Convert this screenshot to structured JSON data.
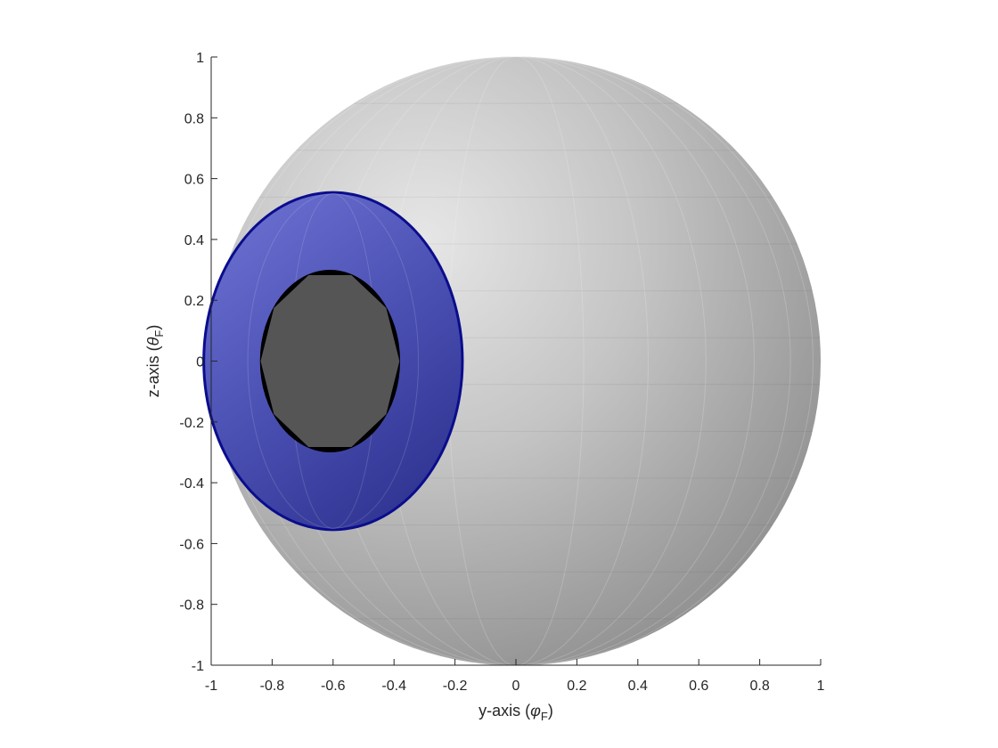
{
  "chart_data": {
    "type": "surface",
    "xlabel": {
      "main": "y-axis (",
      "symbol": "φ",
      "sub": "F",
      "close": ")"
    },
    "ylabel": {
      "main": "z-axis (",
      "symbol": "θ",
      "sub": "F",
      "close": ")"
    },
    "xlim": [
      -1,
      1
    ],
    "ylim": [
      -1,
      1
    ],
    "xticks": [
      -1,
      -0.8,
      -0.6,
      -0.4,
      -0.2,
      0,
      0.2,
      0.4,
      0.6,
      0.8,
      1
    ],
    "yticks": [
      -1,
      -0.8,
      -0.6,
      -0.4,
      -0.2,
      0,
      0.2,
      0.4,
      0.6,
      0.8,
      1
    ],
    "xtick_labels": [
      "-1",
      "-0.8",
      "-0.6",
      "-0.4",
      "-0.2",
      "0",
      "0.2",
      "0.4",
      "0.6",
      "0.8",
      "1"
    ],
    "ytick_labels": [
      "-1",
      "-0.8",
      "-0.6",
      "-0.4",
      "-0.2",
      "0",
      "0.2",
      "0.4",
      "0.6",
      "0.8",
      "1"
    ],
    "surfaces": [
      {
        "shape": "sphere",
        "center": [
          0,
          0
        ],
        "radius": 1.0,
        "color": "#b5b5b5",
        "highlight": "#e4e4e4",
        "shadow": "#8e8e8e"
      },
      {
        "shape": "disc",
        "center": [
          -0.6,
          0
        ],
        "ry": 0.55,
        "rx": 0.42,
        "color": "#4a4fb0",
        "rim": "#0a0d8c"
      },
      {
        "shape": "disc",
        "center": [
          -0.61,
          0
        ],
        "ry": 0.3,
        "rx": 0.23,
        "color": "#555555",
        "rim": "#000000"
      }
    ],
    "grid": false
  }
}
